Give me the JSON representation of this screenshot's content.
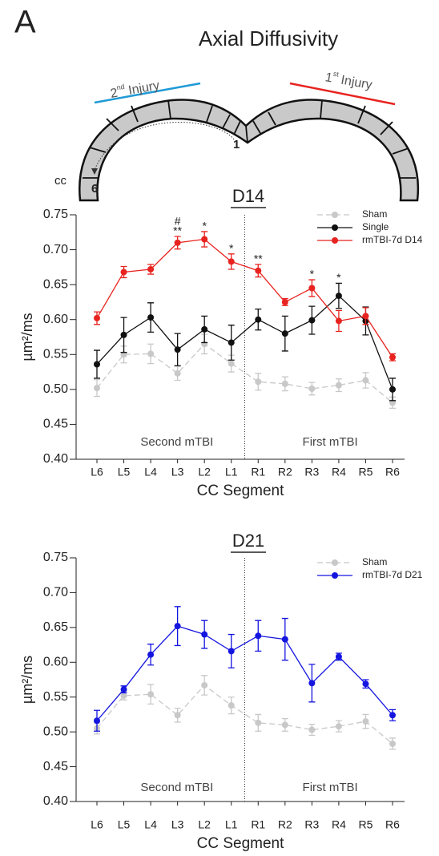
{
  "figure": {
    "panel_label": "A",
    "title": "Axial Diffusivity",
    "diagram": {
      "left_injury": [
        "2",
        "nd",
        "Injury"
      ],
      "right_injury": [
        "1",
        "st",
        "Injury"
      ],
      "cc_label": "cc",
      "start_label": "6",
      "end_label": "1"
    }
  },
  "chart_data": [
    {
      "type": "line",
      "title": "D14",
      "y_label": "µm²/ms",
      "x_label": "CC Segment",
      "categories": [
        "L6",
        "L5",
        "L4",
        "L3",
        "L2",
        "L1",
        "R1",
        "R2",
        "R3",
        "R4",
        "R5",
        "R6"
      ],
      "ylim": [
        0.4,
        0.75
      ],
      "yticks": [
        {
          "value": 0.4,
          "label": "0.40"
        },
        0.45,
        {
          "value": 0.5,
          "label": "0.50"
        },
        0.55,
        {
          "value": 0.6,
          "label": "0.60"
        },
        0.65,
        {
          "value": 0.7,
          "label": "0.70"
        },
        0.75
      ],
      "regions": [
        "Second mTBI",
        "First mTBI"
      ],
      "series": [
        {
          "name": "Sham",
          "color": "#c8c8c8",
          "dashed": true,
          "values": [
            0.502,
            0.55,
            0.551,
            0.523,
            0.565,
            0.537,
            0.511,
            0.508,
            0.501,
            0.506,
            0.513,
            0.481
          ],
          "errors": [
            0.012,
            0.012,
            0.014,
            0.01,
            0.014,
            0.012,
            0.012,
            0.01,
            0.009,
            0.009,
            0.011,
            0.008
          ]
        },
        {
          "name": "Single",
          "color": "#111111",
          "dashed": false,
          "values": [
            0.536,
            0.578,
            0.603,
            0.557,
            0.586,
            0.567,
            0.6,
            0.58,
            0.599,
            0.634,
            0.598,
            0.5
          ],
          "errors": [
            0.02,
            0.025,
            0.021,
            0.023,
            0.019,
            0.025,
            0.015,
            0.025,
            0.02,
            0.018,
            0.02,
            0.016
          ]
        },
        {
          "name": "rmTBI-7d D14",
          "color": "#e8231f",
          "dashed": false,
          "values": [
            0.602,
            0.668,
            0.672,
            0.71,
            0.715,
            0.683,
            0.67,
            0.625,
            0.645,
            0.598,
            0.605,
            0.546
          ],
          "errors": [
            0.009,
            0.008,
            0.007,
            0.009,
            0.011,
            0.011,
            0.009,
            0.005,
            0.012,
            0.015,
            0.012,
            0.005
          ]
        }
      ],
      "annotations": [
        {
          "category": "L3",
          "text": "**"
        },
        {
          "category": "L3",
          "text": "#"
        },
        {
          "category": "L2",
          "text": "*"
        },
        {
          "category": "L1",
          "text": "*"
        },
        {
          "category": "R1",
          "text": "**"
        },
        {
          "category": "R3",
          "text": "*"
        },
        {
          "category": "R4",
          "text": "*"
        }
      ],
      "legend": "upper right"
    },
    {
      "type": "line",
      "title": "D21",
      "y_label": "µm²/ms",
      "x_label": "CC Segment",
      "categories": [
        "L6",
        "L5",
        "L4",
        "L3",
        "L2",
        "L1",
        "R1",
        "R2",
        "R3",
        "R4",
        "R5",
        "R6"
      ],
      "ylim": [
        0.4,
        0.75
      ],
      "yticks": [
        {
          "value": 0.4,
          "label": "0.40"
        },
        0.45,
        {
          "value": 0.5,
          "label": "0.50"
        },
        0.55,
        {
          "value": 0.6,
          "label": "0.60"
        },
        0.65,
        {
          "value": 0.7,
          "label": "0.70"
        },
        0.75
      ],
      "regions": [
        "Second mTBI",
        "First mTBI"
      ],
      "series": [
        {
          "name": "Sham",
          "color": "#c8c8c8",
          "dashed": true,
          "values": [
            0.505,
            0.552,
            0.554,
            0.524,
            0.567,
            0.538,
            0.513,
            0.51,
            0.503,
            0.508,
            0.515,
            0.483
          ],
          "errors": [
            0.008,
            0.006,
            0.014,
            0.01,
            0.014,
            0.012,
            0.012,
            0.009,
            0.008,
            0.008,
            0.01,
            0.008
          ]
        },
        {
          "name": "rmTBI-7d D21",
          "color": "#1515e0",
          "dashed": false,
          "values": [
            0.516,
            0.561,
            0.611,
            0.652,
            0.64,
            0.616,
            0.638,
            0.633,
            0.57,
            0.608,
            0.569,
            0.524
          ],
          "errors": [
            0.015,
            0.005,
            0.015,
            0.028,
            0.02,
            0.024,
            0.022,
            0.03,
            0.027,
            0.005,
            0.006,
            0.008
          ]
        }
      ],
      "legend": "upper right"
    }
  ]
}
